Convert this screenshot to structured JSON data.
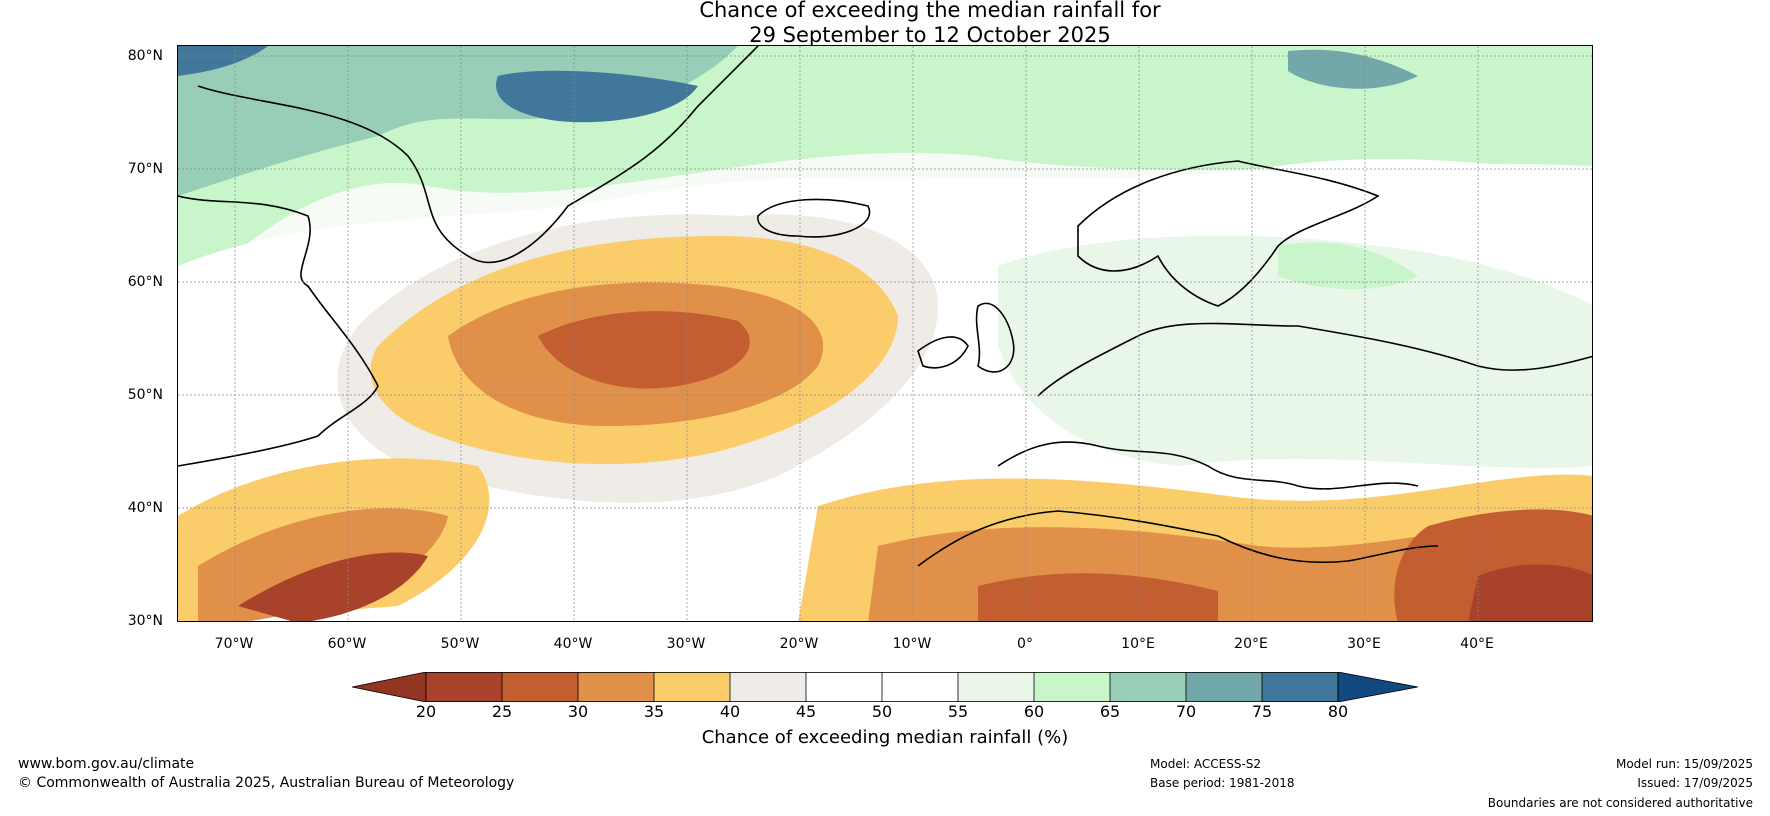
{
  "title": {
    "line1": "Chance of exceeding the median rainfall for",
    "line2": "29 September to 12 October 2025"
  },
  "map": {
    "lat_labels": [
      "80°N",
      "70°N",
      "60°N",
      "50°N",
      "40°N",
      "30°N"
    ],
    "lon_labels": [
      "70°W",
      "60°W",
      "50°W",
      "40°W",
      "30°W",
      "20°W",
      "10°W",
      "0°",
      "10°E",
      "20°E",
      "30°E",
      "40°E"
    ]
  },
  "colorbar": {
    "ticks": [
      "20",
      "25",
      "30",
      "35",
      "40",
      "45",
      "50",
      "55",
      "60",
      "65",
      "70",
      "75",
      "80"
    ],
    "colors": [
      "#a8422a",
      "#c25e30",
      "#e09048",
      "#fbcc6a",
      "#efebe7",
      "#ffffff",
      "#ffffff",
      "#e9f7e9",
      "#c9f5cb",
      "#98ceb7",
      "#72a8a9",
      "#41779a"
    ],
    "under_color": "#923523",
    "over_color": "#12497f",
    "label": "Chance of exceeding median rainfall (%)"
  },
  "footer": {
    "website": "www.bom.gov.au/climate",
    "copyright": "© Commonwealth of Australia 2025, Australian Bureau of Meteorology",
    "model": "Model: ACCESS-S2",
    "base_period": "Base period: 1981-2018",
    "model_run": "Model run: 15/09/2025",
    "issued": "Issued: 17/09/2025",
    "disclaimer": "Boundaries are not considered authoritative"
  }
}
